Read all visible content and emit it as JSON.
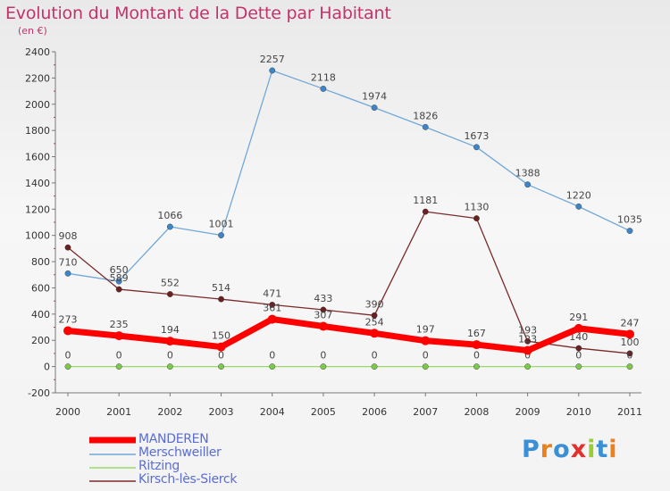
{
  "title": "Evolution du Montant de la Dette par Habitant",
  "subtitle": "(en €)",
  "brand": {
    "text": "Proxiti",
    "colors": [
      "#3a8fd6",
      "#e8821e",
      "#3a8fd6",
      "#e0312d",
      "#9acd32",
      "#3a8fd6",
      "#e8821e"
    ]
  },
  "chart_data": {
    "type": "line",
    "categories": [
      "2000",
      "2001",
      "2002",
      "2003",
      "2004",
      "2005",
      "2006",
      "2007",
      "2008",
      "2009",
      "2010",
      "2011"
    ],
    "ylim": [
      -200,
      2400
    ],
    "yticks": [
      "-200",
      "0",
      "200",
      "400",
      "600",
      "800",
      "1000",
      "1200",
      "1400",
      "1600",
      "1800",
      "2000",
      "2200",
      "2400"
    ],
    "grid": false,
    "legend_position": "bottom-left",
    "series": [
      {
        "name": "MANDEREN",
        "color": "#ff0000",
        "marker": "#ff0000",
        "values": [
          273,
          235,
          194,
          150,
          361,
          307,
          254,
          197,
          167,
          123,
          291,
          247
        ],
        "labels": [
          "273",
          "235",
          "194",
          "150",
          "361",
          "307",
          "254",
          "197",
          "167",
          "123",
          "291",
          "247"
        ]
      },
      {
        "name": "Merschweiller",
        "color": "#72a8d8",
        "marker": "#3d85c6",
        "values": [
          710,
          650,
          1066,
          1001,
          2257,
          2118,
          1974,
          1826,
          1673,
          1388,
          1220,
          1035
        ],
        "labels": [
          "710",
          "650",
          "1066",
          "1001",
          "2257",
          "2118",
          "1974",
          "1826",
          "1673",
          "1388",
          "1220",
          "1035"
        ]
      },
      {
        "name": "Ritzing",
        "color": "#99d96b",
        "marker": "#7cc84a",
        "values": [
          0,
          0,
          0,
          0,
          0,
          0,
          0,
          0,
          0,
          0,
          0,
          0
        ],
        "labels": [
          "0",
          "0",
          "0",
          "0",
          "0",
          "0",
          "0",
          "0",
          "0",
          "0",
          "0",
          "0"
        ]
      },
      {
        "name": "Kirsch-lès-Sierck",
        "color": "#7a2a2a",
        "marker": "#6b1f1f",
        "values": [
          908,
          589,
          552,
          514,
          471,
          433,
          390,
          1181,
          1130,
          193,
          140,
          100
        ],
        "labels": [
          "908",
          "589",
          "552",
          "514",
          "471",
          "433",
          "390",
          "1181",
          "1130",
          "193",
          "140",
          "100"
        ]
      }
    ]
  }
}
